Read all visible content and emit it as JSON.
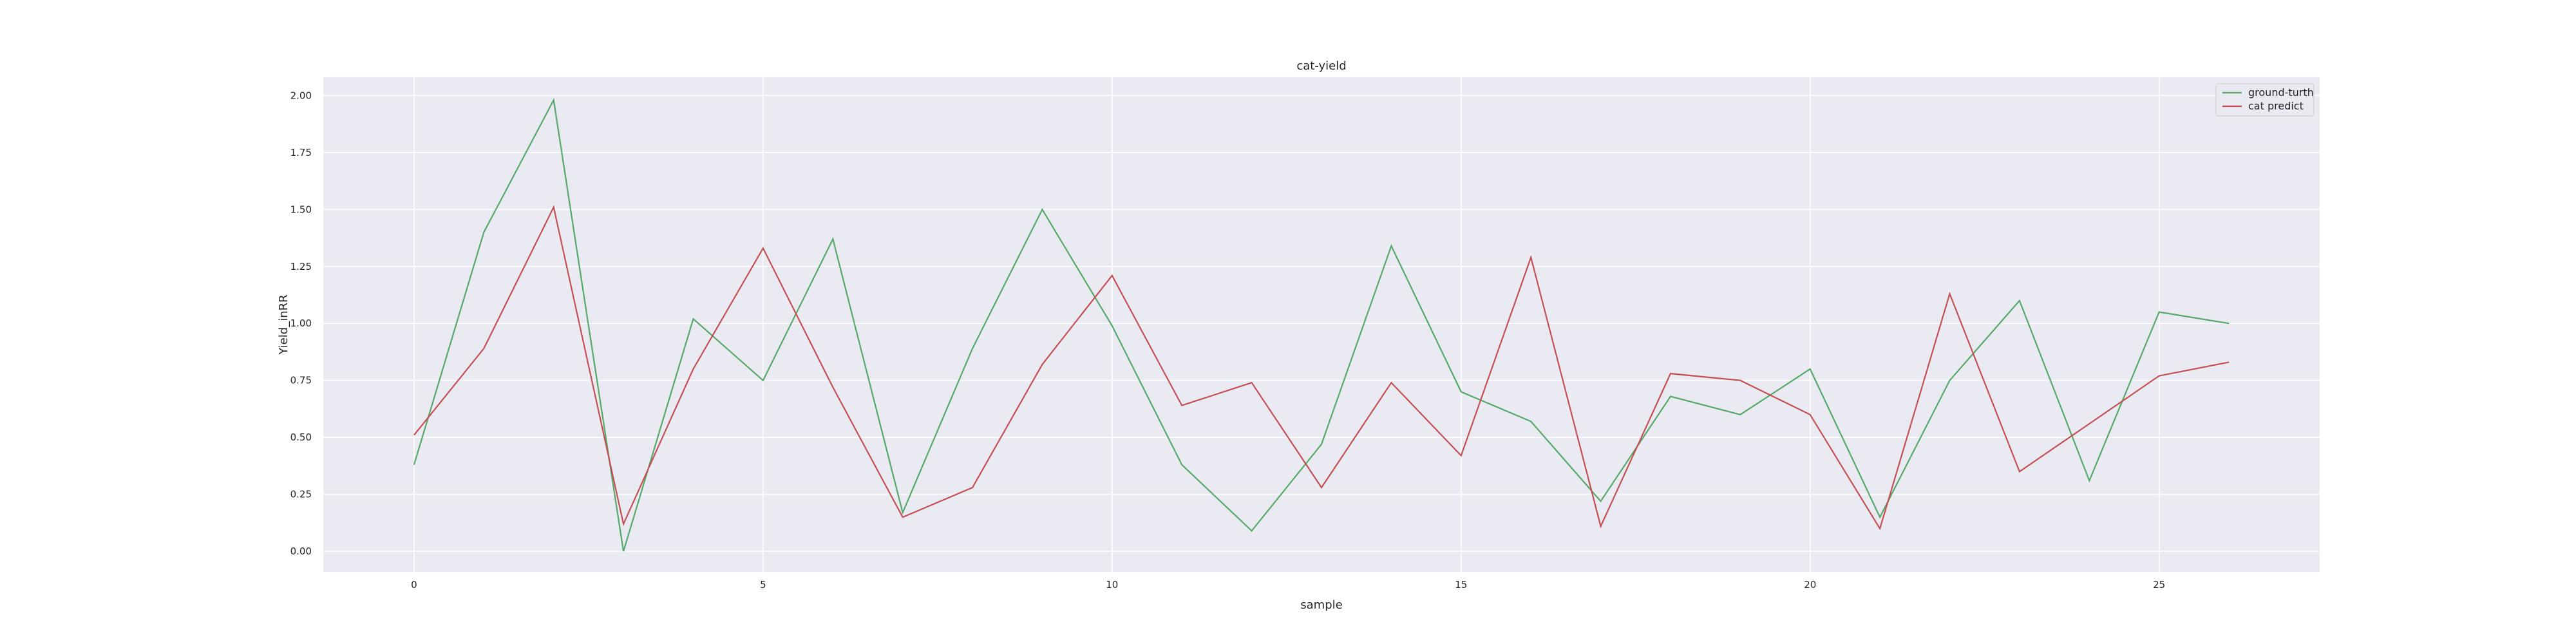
{
  "chart_data": {
    "type": "line",
    "title": "cat-yield",
    "xlabel": "sample",
    "ylabel": "Yield_inRR",
    "x": [
      0,
      1,
      2,
      3,
      4,
      5,
      6,
      7,
      8,
      9,
      10,
      11,
      12,
      13,
      14,
      15,
      16,
      17,
      18,
      19,
      20,
      21,
      22,
      23,
      24,
      25,
      26
    ],
    "xlim": [
      -1.3,
      27.3
    ],
    "ylim": [
      -0.09,
      2.08
    ],
    "xticks": [
      0,
      5,
      10,
      15,
      20,
      25
    ],
    "xtick_labels": [
      "0",
      "5",
      "10",
      "15",
      "20",
      "25"
    ],
    "yticks": [
      0,
      0.25,
      0.5,
      0.75,
      1.0,
      1.25,
      1.5,
      1.75,
      2.0
    ],
    "ytick_labels": [
      "0.00",
      "0.25",
      "0.50",
      "0.75",
      "1.00",
      "1.25",
      "1.50",
      "1.75",
      "2.00"
    ],
    "grid": true,
    "legend_position": "top-right",
    "series": [
      {
        "name": "ground-turth",
        "color": "#55a868",
        "values": [
          0.38,
          1.4,
          1.98,
          0.0,
          1.02,
          0.75,
          1.37,
          0.17,
          0.89,
          1.5,
          0.99,
          0.38,
          0.09,
          0.47,
          1.34,
          0.7,
          0.57,
          0.22,
          0.68,
          0.6,
          0.8,
          0.15,
          0.75,
          1.1,
          0.31,
          1.05,
          1.0
        ]
      },
      {
        "name": "cat predict",
        "color": "#c44e52",
        "values": [
          0.51,
          0.89,
          1.51,
          0.12,
          0.8,
          1.33,
          0.72,
          0.15,
          0.28,
          0.82,
          1.21,
          0.64,
          0.74,
          0.28,
          0.74,
          0.42,
          1.29,
          0.11,
          0.78,
          0.75,
          0.6,
          0.1,
          1.13,
          0.35,
          0.56,
          0.77,
          0.83
        ]
      }
    ],
    "plot_background": "#eaeaf2",
    "grid_color": "#ffffff"
  }
}
